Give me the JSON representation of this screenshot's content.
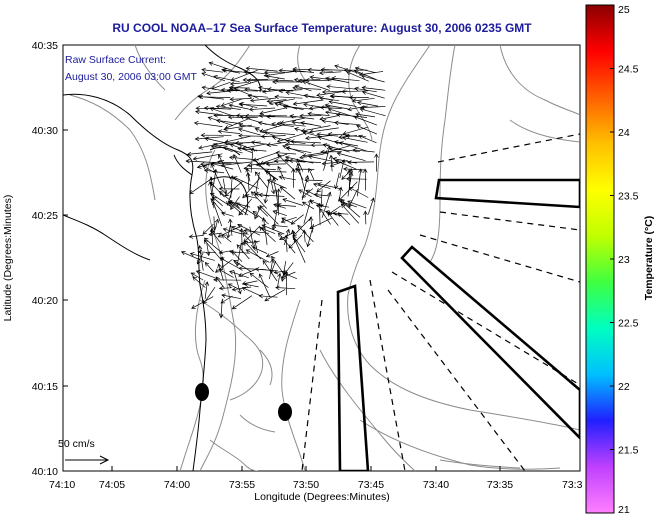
{
  "title": "RU COOL  NOAA–17  Sea Surface Temperature:  August 30, 2006 0235 GMT",
  "annotation": {
    "line1": "Raw Surface Current:",
    "line2": "August 30, 2006 03:00 GMT"
  },
  "scale_label": "50 cm/s",
  "axes": {
    "xlabel": "Longitude (Degrees:Minutes)",
    "ylabel": "Latitude (Degrees:Minutes)",
    "xticks": [
      "74:10",
      "74:05",
      "74:00",
      "73:55",
      "73:50",
      "73:45",
      "73:40",
      "73:35",
      "73:3"
    ],
    "yticks": [
      "40:35",
      "40:30",
      "40:25",
      "40:20",
      "40:15",
      "40:10"
    ]
  },
  "colorbar": {
    "label": "Temperature (°C)",
    "min": 21,
    "max": 25,
    "ticks": [
      "25",
      "24.5",
      "24",
      "23.5",
      "23",
      "22.5",
      "22",
      "21.5",
      "21"
    ],
    "colors": [
      "#ff80ff",
      "#c040ff",
      "#2020ff",
      "#00c0ff",
      "#00ffc0",
      "#40ff40",
      "#c0ff00",
      "#ffff00",
      "#ffc000",
      "#ff6000",
      "#ff0000",
      "#8b0000"
    ]
  }
}
